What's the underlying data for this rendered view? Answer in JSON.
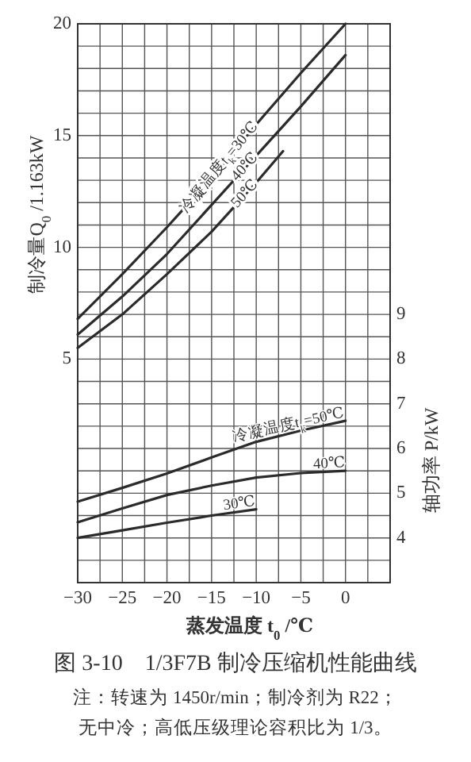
{
  "chart_data": {
    "type": "line",
    "title": "图 3-10　1/3F7B 制冷压缩机性能曲线",
    "xlabel": "蒸发温度 t$_{0}$ /℃",
    "ylabel": "制冷量Q$_{0}$ /1.163kW",
    "y2label": "轴功率 P/kW",
    "annotations": [
      "注：转速为 1450r/min；制冷剂为 R22；",
      "无中冷；高低压级理论容积比为 1/3。"
    ],
    "x": [
      -30,
      -25,
      -20,
      -15,
      -10,
      -5,
      0
    ],
    "series": [
      {
        "name": "冷凝温度t$_{k}$=30℃",
        "color": "#2b2b2b",
        "values": [
          6.8,
          8.8,
          10.9,
          13.1,
          15.5,
          17.8,
          20.0
        ]
      },
      {
        "name": "40℃",
        "color": "#2b2b2b",
        "values": [
          6.1,
          7.8,
          9.7,
          11.9,
          14.1,
          16.3,
          18.6
        ]
      },
      {
        "name": "50℃",
        "color": "#2b2b2b",
        "x": [
          -30,
          -25,
          -20,
          -15,
          -10,
          -7
        ],
        "values": [
          5.5,
          7.0,
          8.8,
          10.7,
          12.9,
          14.3
        ]
      },
      {
        "name": "冷凝温度t$_{k}$=50℃",
        "color": "#2b2b2b",
        "axis": "y2",
        "values": [
          4.81,
          5.12,
          5.44,
          5.8,
          6.15,
          6.4,
          6.62
        ]
      },
      {
        "name": "40℃",
        "color": "#2b2b2b",
        "axis": "y2",
        "values": [
          4.35,
          4.66,
          4.96,
          5.17,
          5.35,
          5.45,
          5.5
        ]
      },
      {
        "name": "30℃",
        "color": "#2b2b2b",
        "axis": "y2",
        "x": [
          -30,
          -25,
          -20,
          -15,
          -10
        ],
        "values": [
          4.0,
          4.17,
          4.34,
          4.5,
          4.64
        ]
      }
    ],
    "xlim": [
      -30,
      5
    ],
    "xticks": [
      -30,
      {
        "value": -27.5,
        "label": null
      },
      -25,
      {
        "value": -22.5,
        "label": null
      },
      -20,
      {
        "value": -17.5,
        "label": null
      },
      -15,
      {
        "value": -12.5,
        "label": null
      },
      -10,
      {
        "value": -7.5,
        "label": null
      },
      -5,
      {
        "value": -2.5,
        "label": null
      },
      0,
      {
        "value": 2.5,
        "label": null
      }
    ],
    "ylim": [
      -5,
      20
    ],
    "yticks": [
      {
        "value": -4,
        "label": null
      },
      {
        "value": -3,
        "label": null
      },
      {
        "value": -2,
        "label": null
      },
      {
        "value": -1,
        "label": null
      },
      {
        "value": 0,
        "label": null
      },
      {
        "value": 1,
        "label": null
      },
      {
        "value": 2,
        "label": null
      },
      {
        "value": 3,
        "label": null
      },
      {
        "value": 4,
        "label": null
      },
      5,
      {
        "value": 6,
        "label": null
      },
      {
        "value": 7,
        "label": null
      },
      {
        "value": 8,
        "label": null
      },
      {
        "value": 9,
        "label": null
      },
      10,
      {
        "value": 11,
        "label": null
      },
      {
        "value": 12,
        "label": null
      },
      {
        "value": 13,
        "label": null
      },
      {
        "value": 14,
        "label": null
      },
      15,
      {
        "value": 16,
        "label": null
      },
      {
        "value": 17,
        "label": null
      },
      {
        "value": 18,
        "label": null
      },
      {
        "value": 19,
        "label": null
      },
      20
    ],
    "y2lim": [
      3,
      15.5
    ],
    "y2ticks": [
      4,
      5,
      6,
      7,
      8,
      9
    ],
    "grid": true
  }
}
